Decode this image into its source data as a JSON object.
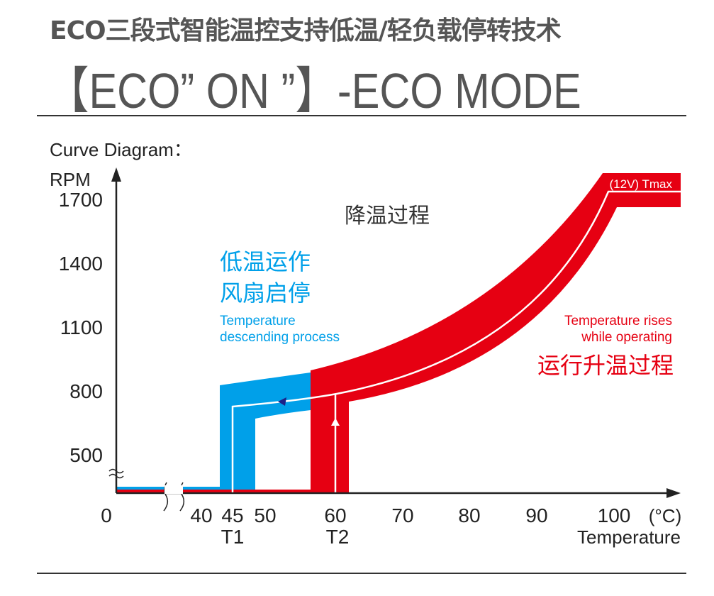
{
  "header": {
    "title_cn": "ECO三段式智能温控支持低温/轻负载停转技术",
    "title_en": "【ECO” ON ”】-ECO MODE"
  },
  "diagram": {
    "caption": "Curve Diagram：",
    "y_axis_label": "RPM",
    "y_ticks": [
      "1700",
      "1400",
      "1100",
      "800",
      "500"
    ],
    "x_ticks": [
      "0",
      "40",
      "45",
      "50",
      "60",
      "70",
      "80",
      "90",
      "100",
      "(°C)"
    ],
    "x_sub_labels": {
      "t1": "T1",
      "t2": "T2"
    },
    "x_axis_label": "Temperature",
    "tmax_label": "(12V)  Tmax",
    "cooling_cn": "降温过程",
    "low_temp_stop_cn_1": "低温运作",
    "low_temp_stop_cn_2": "风扇启停",
    "descending_en_1": "Temperature",
    "descending_en_2": "descending process",
    "rising_en_1": "Temperature rises",
    "rising_en_2": "while operating",
    "rising_cn": "运行升温过程",
    "colors": {
      "red": "#e60012",
      "blue": "#00a0e9",
      "text": "#222222",
      "title": "#555555"
    }
  }
}
